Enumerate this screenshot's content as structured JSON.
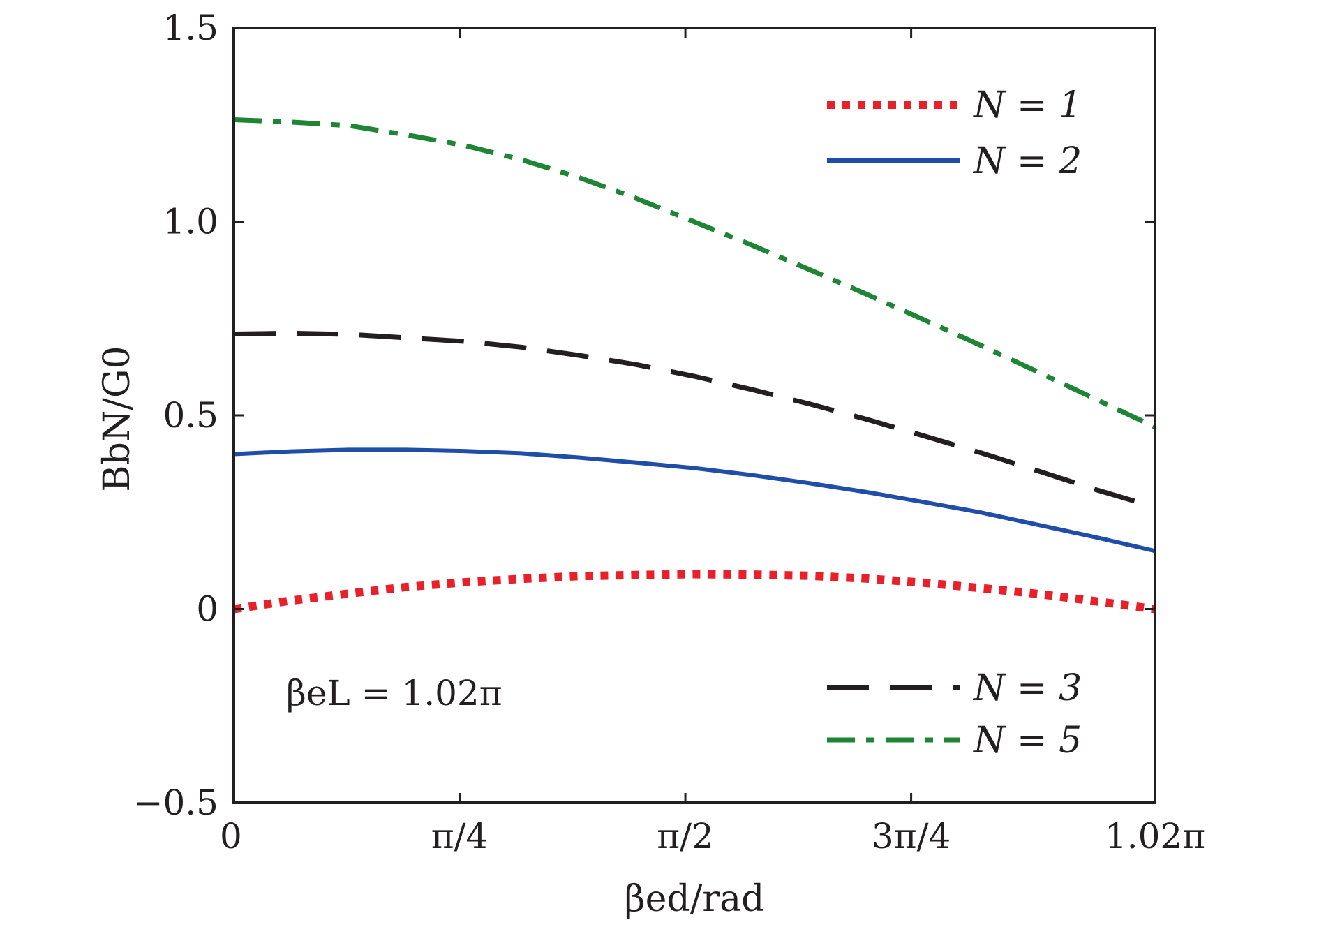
{
  "chart_data": {
    "type": "line",
    "title": "",
    "xlabel": "βed/rad",
    "ylabel": "BbN/G0",
    "xlim": [
      0,
      3.2044
    ],
    "ylim": [
      -0.5,
      1.5
    ],
    "x_ticks": [
      {
        "value": 0,
        "label": "0"
      },
      {
        "value": 0.7854,
        "label": "π/4"
      },
      {
        "value": 1.5708,
        "label": "π/2"
      },
      {
        "value": 2.3562,
        "label": "3π/4"
      },
      {
        "value": 3.2044,
        "label": "1.02π"
      }
    ],
    "y_ticks": [
      {
        "value": -0.5,
        "label": "−0.5"
      },
      {
        "value": 0,
        "label": "0"
      },
      {
        "value": 0.5,
        "label": "0.5"
      },
      {
        "value": 1.0,
        "label": "1.0"
      },
      {
        "value": 1.5,
        "label": "1.5"
      }
    ],
    "grid": false,
    "annotation": "βeL = 1.02π",
    "x": [
      0,
      0.2,
      0.4,
      0.6,
      0.8,
      1.0,
      1.2,
      1.4,
      1.6,
      1.8,
      2.0,
      2.2,
      2.4,
      2.6,
      2.8,
      3.0,
      3.2044
    ],
    "series": [
      {
        "name": "N = 1",
        "color": "#e8202a",
        "style": "dotted",
        "values": [
          0.0,
          0.022,
          0.04,
          0.057,
          0.069,
          0.078,
          0.085,
          0.088,
          0.09,
          0.089,
          0.086,
          0.079,
          0.068,
          0.054,
          0.039,
          0.02,
          0.0
        ]
      },
      {
        "name": "N = 2",
        "color": "#1f4ea8",
        "style": "solid",
        "values": [
          0.4,
          0.407,
          0.411,
          0.411,
          0.408,
          0.402,
          0.391,
          0.378,
          0.364,
          0.346,
          0.325,
          0.302,
          0.276,
          0.249,
          0.217,
          0.185,
          0.15
        ]
      },
      {
        "name": "N = 3",
        "color": "#231f20",
        "style": "dashed",
        "values": [
          0.71,
          0.712,
          0.709,
          0.7,
          0.691,
          0.676,
          0.655,
          0.631,
          0.601,
          0.567,
          0.53,
          0.49,
          0.447,
          0.403,
          0.356,
          0.308,
          0.263
        ]
      },
      {
        "name": "N = 5",
        "color": "#1e8535",
        "style": "dashdot",
        "values": [
          1.263,
          1.257,
          1.248,
          1.224,
          1.197,
          1.16,
          1.114,
          1.06,
          1.0,
          0.94,
          0.877,
          0.813,
          0.747,
          0.68,
          0.611,
          0.541,
          0.47
        ]
      }
    ],
    "legend": [
      {
        "series": "N = 1",
        "placement": "top-right"
      },
      {
        "series": "N = 2",
        "placement": "top-right"
      },
      {
        "series": "N = 3",
        "placement": "bottom-right"
      },
      {
        "series": "N = 5",
        "placement": "bottom-right"
      }
    ]
  }
}
